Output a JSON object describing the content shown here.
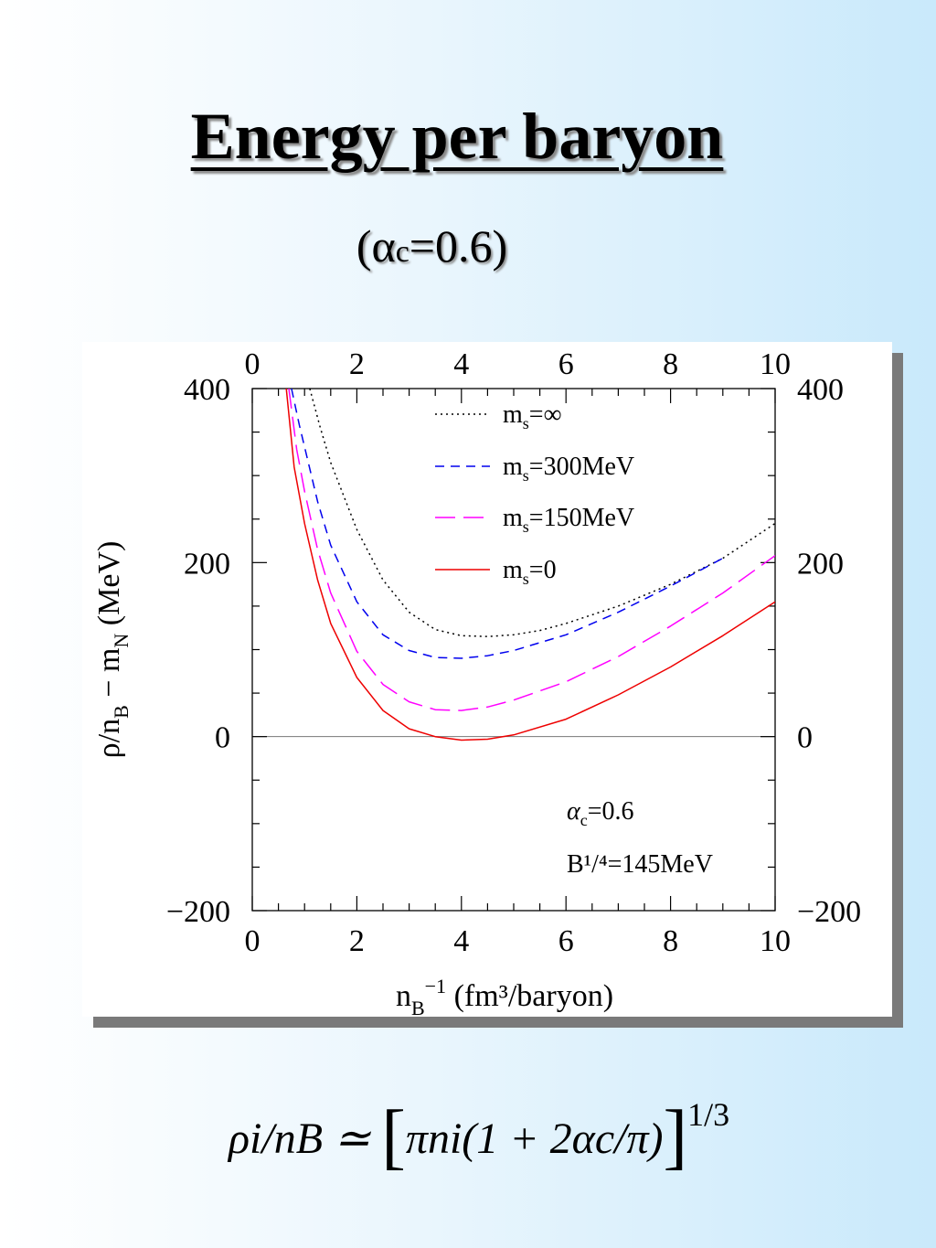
{
  "slide": {
    "title": "Energy per baryon",
    "subtitle_open": "(α",
    "subtitle_sub": "c",
    "subtitle_rest": "=0.6)"
  },
  "formula": {
    "lhs": "ρi/nB ≃",
    "inner": "πni(1 + 2αc/π)",
    "exponent": "1/3"
  },
  "chart_data": {
    "type": "line",
    "xlabel": "n_B^-1 (fm³/baryon)",
    "ylabel": "ρ/n_B − m_N (MeV)",
    "xlim": [
      0,
      10
    ],
    "ylim": [
      -200,
      400
    ],
    "x_ticks": [
      0,
      2,
      4,
      6,
      8,
      10
    ],
    "y_ticks": [
      -200,
      0,
      200,
      400
    ],
    "x_tick_labels": [
      "0",
      "2",
      "4",
      "6",
      "8",
      "10"
    ],
    "y_tick_labels": [
      "−200",
      "0",
      "200",
      "400"
    ],
    "grid": false,
    "legend_position": "top-center",
    "annotations": [
      "αc=0.6",
      "B¹/⁴=145MeV"
    ],
    "reference_line_y": 0,
    "series": [
      {
        "name": "ms=∞",
        "label_main": "m",
        "label_sub": "s",
        "label_rest": "=∞",
        "style": "dotted",
        "color": "#000000",
        "x": [
          1.1,
          1.3,
          1.5,
          2.0,
          2.5,
          3.0,
          3.5,
          4.0,
          4.5,
          5.0,
          5.5,
          6.0,
          7.0,
          8.0,
          9.0,
          10.0
        ],
        "y": [
          400,
          355,
          315,
          238,
          180,
          143,
          123,
          116,
          115,
          117,
          122,
          130,
          150,
          175,
          205,
          245
        ]
      },
      {
        "name": "ms=300MeV",
        "label_main": "m",
        "label_sub": "s",
        "label_rest": "=300MeV",
        "style": "dashed",
        "color": "#0000ee",
        "x": [
          0.75,
          0.9,
          1.0,
          1.25,
          1.5,
          2.0,
          2.5,
          3.0,
          3.5,
          4.0,
          4.5,
          5.0,
          6.0,
          7.0,
          8.0,
          9.0
        ],
        "y": [
          400,
          358,
          333,
          270,
          220,
          155,
          117,
          99,
          91,
          90,
          93,
          99,
          117,
          143,
          173,
          205
        ]
      },
      {
        "name": "ms=150MeV",
        "label_main": "m",
        "label_sub": "s",
        "label_rest": "=150MeV",
        "style": "longdash",
        "color": "#ff00ff",
        "x": [
          0.7,
          0.85,
          1.0,
          1.25,
          1.5,
          2.0,
          2.5,
          3.0,
          3.5,
          4.0,
          4.5,
          5.0,
          6.0,
          7.0,
          8.0,
          9.0,
          10.0
        ],
        "y": [
          400,
          330,
          282,
          215,
          165,
          98,
          60,
          40,
          31,
          30,
          34,
          42,
          63,
          92,
          127,
          165,
          208
        ]
      },
      {
        "name": "ms=0",
        "label_main": "m",
        "label_sub": "s",
        "label_rest": "=0",
        "style": "solid",
        "color": "#ee0000",
        "x": [
          0.65,
          0.8,
          1.0,
          1.25,
          1.5,
          2.0,
          2.5,
          3.0,
          3.5,
          4.0,
          4.5,
          5.0,
          6.0,
          7.0,
          8.0,
          9.0,
          10.0
        ],
        "y": [
          400,
          310,
          245,
          180,
          130,
          68,
          30,
          9,
          0,
          -4,
          -3,
          2,
          20,
          48,
          80,
          116,
          155
        ]
      }
    ]
  }
}
